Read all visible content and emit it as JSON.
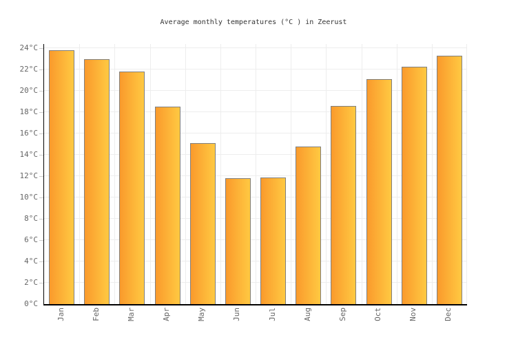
{
  "chart_data": {
    "type": "bar",
    "title": "Average monthly temperatures (°C ) in Zeerust",
    "categories": [
      "Jan",
      "Feb",
      "Mar",
      "Apr",
      "May",
      "Jun",
      "Jul",
      "Aug",
      "Sep",
      "Oct",
      "Nov",
      "Dec"
    ],
    "values": [
      23.8,
      23.0,
      21.8,
      18.5,
      15.1,
      11.8,
      11.9,
      14.8,
      18.6,
      21.1,
      22.3,
      23.3
    ],
    "xlabel": "",
    "ylabel": "",
    "ylim": [
      0,
      24.4
    ],
    "ytick_step": 2,
    "ytick_suffix": "°C",
    "grid": true,
    "legend": "none",
    "colors": {
      "bar_gradient_left": "#FA9A2C",
      "bar_gradient_right": "#FFC942",
      "bar_border": "#7F7F7F",
      "axis_line": "#000000",
      "grid_line": "#EDEDED",
      "tick_mark": "#CCCCCC",
      "tick_label": "#666666",
      "title_text": "#333333",
      "background": "#FFFFFF"
    }
  }
}
